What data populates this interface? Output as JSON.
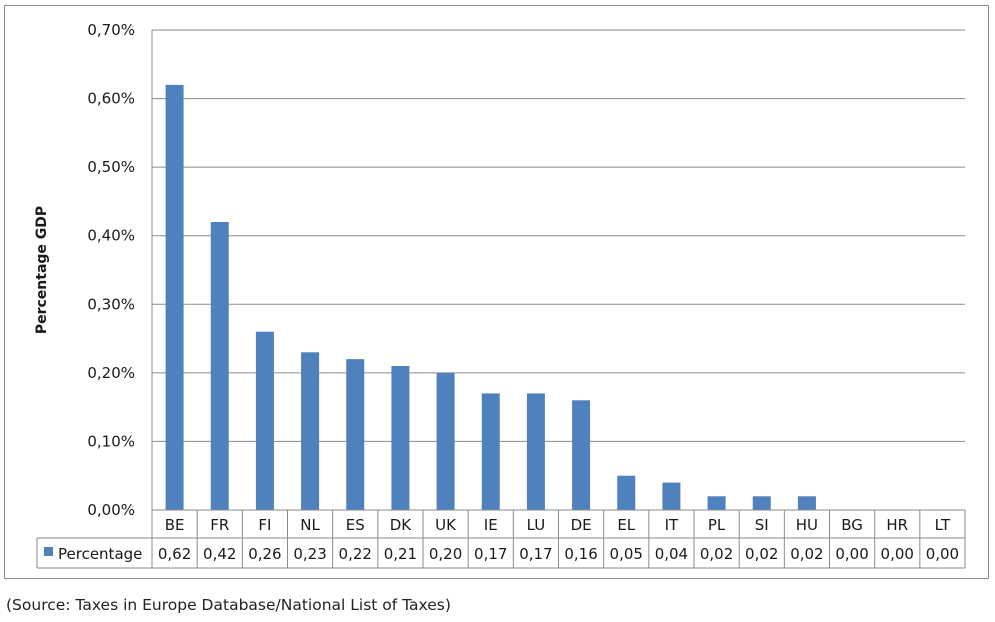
{
  "chart_data": {
    "type": "bar",
    "categories": [
      "BE",
      "FR",
      "FI",
      "NL",
      "ES",
      "DK",
      "UK",
      "IE",
      "LU",
      "DE",
      "EL",
      "IT",
      "PL",
      "SI",
      "HU",
      "BG",
      "HR",
      "LT"
    ],
    "series": [
      {
        "name": "Percentage",
        "values": [
          0.62,
          0.42,
          0.26,
          0.23,
          0.22,
          0.21,
          0.2,
          0.17,
          0.17,
          0.16,
          0.05,
          0.04,
          0.02,
          0.02,
          0.02,
          0.0,
          0.0,
          0.0
        ]
      }
    ],
    "table_values": [
      "0,62",
      "0,42",
      "0,26",
      "0,23",
      "0,22",
      "0,21",
      "0,20",
      "0,17",
      "0,17",
      "0,16",
      "0,05",
      "0,04",
      "0,02",
      "0,02",
      "0,02",
      "0,00",
      "0,00",
      "0,00"
    ],
    "ylabel": "Percentage GDP",
    "ylim": [
      0,
      0.7
    ],
    "yticks": [
      "0,00%",
      "0,10%",
      "0,20%",
      "0,30%",
      "0,40%",
      "0,50%",
      "0,60%",
      "0,70%"
    ],
    "grid": true,
    "legend_placement": "data-table",
    "bar_color": "#4f81bd"
  },
  "caption": "(Source: Taxes in Europe Database/National List of Taxes)"
}
